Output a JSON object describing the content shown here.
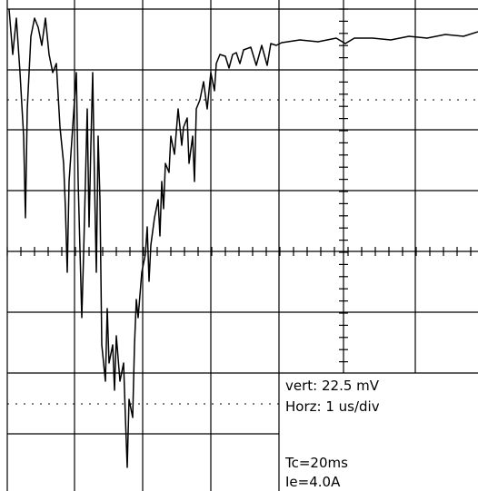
{
  "annotation": {
    "vert": "vert:  22.5 mV",
    "horz": "Horz:  1 us/div",
    "tc": "Tc=20ms",
    "ie": "Ie=4.0A"
  }
}
